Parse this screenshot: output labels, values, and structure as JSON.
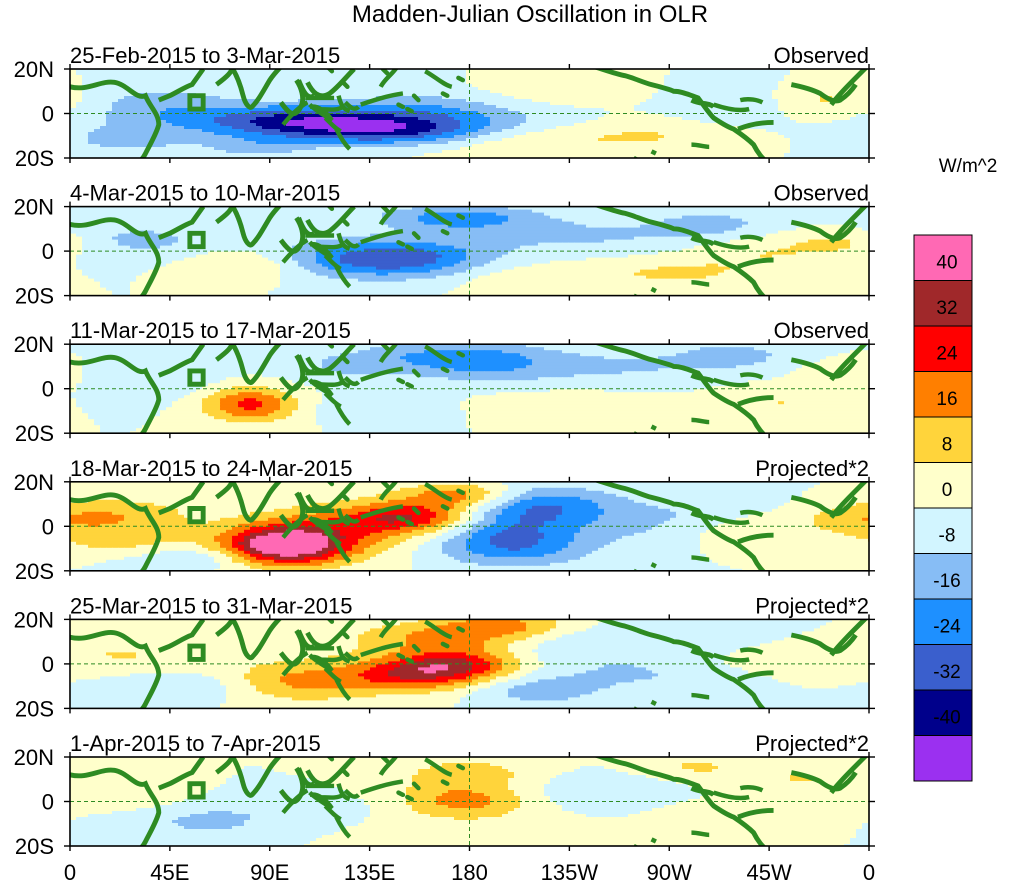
{
  "chart_data": {
    "type": "heatmap",
    "title": "Madden-Julian Oscillation in OLR",
    "units": "W/m^2",
    "x_tick_labels": [
      "0",
      "45E",
      "90E",
      "135E",
      "180",
      "135W",
      "90W",
      "45W",
      "0"
    ],
    "y_tick_labels": [
      "20N",
      "0",
      "20S"
    ],
    "levels": [
      -40,
      -32,
      -24,
      -16,
      -8,
      0,
      8,
      16,
      24,
      32,
      40
    ],
    "level_labels": [
      "40",
      "32",
      "24",
      "16",
      "8",
      "0",
      "-8",
      "-16",
      "-24",
      "-32",
      "-40"
    ],
    "colors": [
      "#9b30f0",
      "#00008b",
      "#3a5fcd",
      "#1e90ff",
      "#87bdf5",
      "#d2f5ff",
      "#ffffcb",
      "#ffd43b",
      "#ff7f00",
      "#ff0000",
      "#a0282a",
      "#ff69b4"
    ],
    "panels": [
      {
        "period": "25-Feb-2015 to 3-Mar-2015",
        "label": "Observed",
        "blobs": [
          [
            125,
            -4,
            50,
            5,
            -24
          ],
          [
            145,
            -9,
            30,
            4,
            -20
          ],
          [
            100,
            -3,
            30,
            5,
            -16
          ],
          [
            40,
            4,
            25,
            6,
            -12
          ],
          [
            25,
            -12,
            22,
            5,
            -10
          ],
          [
            165,
            3,
            30,
            7,
            -10
          ],
          [
            200,
            -12,
            30,
            5,
            8
          ],
          [
            260,
            -10,
            25,
            5,
            8
          ],
          [
            210,
            10,
            30,
            5,
            6
          ],
          [
            300,
            5,
            20,
            6,
            -8
          ],
          [
            340,
            6,
            20,
            5,
            10
          ],
          [
            85,
            -15,
            18,
            4,
            -10
          ]
        ]
      },
      {
        "period": "4-Mar-2015 to 10-Mar-2015",
        "label": "Observed",
        "blobs": [
          [
            150,
            -3,
            28,
            6,
            -20
          ],
          [
            175,
            15,
            25,
            4,
            -20
          ],
          [
            125,
            -4,
            35,
            6,
            -14
          ],
          [
            80,
            -6,
            20,
            5,
            14
          ],
          [
            30,
            5,
            28,
            6,
            -10
          ],
          [
            230,
            7,
            40,
            6,
            -9
          ],
          [
            290,
            12,
            20,
            5,
            -10
          ],
          [
            270,
            -10,
            30,
            5,
            9
          ],
          [
            315,
            0,
            25,
            6,
            8
          ],
          [
            350,
            4,
            15,
            4,
            10
          ],
          [
            200,
            -12,
            20,
            5,
            6
          ]
        ]
      },
      {
        "period": "11-Mar-2015 to 17-Mar-2015",
        "label": "Observed",
        "blobs": [
          [
            80,
            -6,
            14,
            5,
            18
          ],
          [
            83,
            -9,
            16,
            6,
            10
          ],
          [
            170,
            15,
            28,
            5,
            -14
          ],
          [
            190,
            10,
            25,
            6,
            -12
          ],
          [
            125,
            10,
            20,
            5,
            -8
          ],
          [
            140,
            -9,
            25,
            5,
            -6
          ],
          [
            250,
            10,
            30,
            6,
            -8
          ],
          [
            300,
            15,
            20,
            5,
            -10
          ],
          [
            320,
            -6,
            20,
            5,
            8
          ],
          [
            350,
            5,
            15,
            5,
            8
          ],
          [
            30,
            3,
            25,
            6,
            -8
          ],
          [
            220,
            -8,
            30,
            5,
            6
          ]
        ]
      },
      {
        "period": "18-Mar-2015 to 24-Mar-2015",
        "label": "Projected*2",
        "blobs": [
          [
            95,
            -9,
            18,
            6,
            38
          ],
          [
            108,
            -7,
            26,
            7,
            20
          ],
          [
            155,
            4,
            22,
            5,
            26
          ],
          [
            175,
            14,
            18,
            4,
            20
          ],
          [
            130,
            3,
            35,
            7,
            10
          ],
          [
            20,
            5,
            25,
            6,
            14
          ],
          [
            25,
            -8,
            22,
            5,
            10
          ],
          [
            195,
            0,
            22,
            8,
            -18
          ],
          [
            200,
            -10,
            25,
            6,
            -16
          ],
          [
            215,
            10,
            20,
            6,
            -16
          ],
          [
            260,
            3,
            40,
            8,
            -10
          ],
          [
            55,
            -14,
            25,
            4,
            -10
          ],
          [
            300,
            -2,
            20,
            6,
            8
          ],
          [
            350,
            2,
            20,
            5,
            8
          ]
        ]
      },
      {
        "period": "25-Mar-2015 to 31-Mar-2015",
        "label": "Projected*2",
        "blobs": [
          [
            175,
            0,
            20,
            5,
            26
          ],
          [
            170,
            12,
            30,
            5,
            18
          ],
          [
            155,
            -5,
            20,
            5,
            20
          ],
          [
            100,
            -9,
            25,
            6,
            14
          ],
          [
            130,
            -4,
            40,
            7,
            8
          ],
          [
            195,
            18,
            20,
            4,
            16
          ],
          [
            210,
            -12,
            20,
            5,
            -12
          ],
          [
            55,
            -10,
            25,
            5,
            -10
          ],
          [
            225,
            8,
            30,
            6,
            -8
          ],
          [
            290,
            12,
            25,
            5,
            -8
          ],
          [
            255,
            -5,
            30,
            6,
            -8
          ],
          [
            25,
            4,
            25,
            6,
            8
          ],
          [
            320,
            5,
            25,
            6,
            6
          ]
        ]
      },
      {
        "period": "1-Apr-2015 to 7-Apr-2015",
        "label": "Projected*2",
        "blobs": [
          [
            178,
            0,
            20,
            5,
            16
          ],
          [
            180,
            12,
            25,
            6,
            12
          ],
          [
            160,
            -5,
            40,
            7,
            8
          ],
          [
            120,
            -4,
            50,
            6,
            -8
          ],
          [
            60,
            -10,
            20,
            5,
            -8
          ],
          [
            240,
            5,
            30,
            6,
            -8
          ],
          [
            280,
            15,
            20,
            5,
            9
          ],
          [
            300,
            -5,
            25,
            5,
            6
          ],
          [
            30,
            3,
            20,
            5,
            6
          ],
          [
            330,
            10,
            20,
            6,
            8
          ]
        ]
      }
    ]
  }
}
